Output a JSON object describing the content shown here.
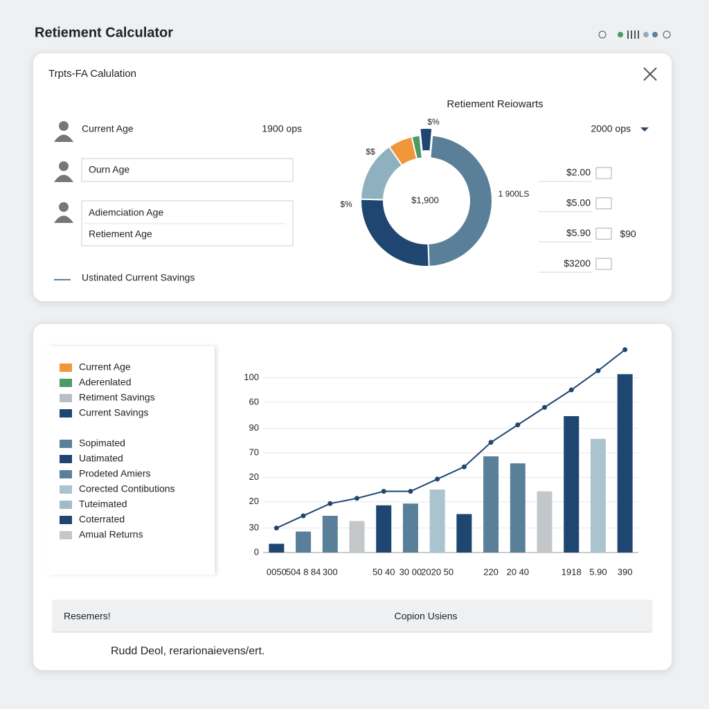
{
  "header": {
    "title": "Retiement Calculator"
  },
  "form": {
    "title": "Trpts-FA Calulation",
    "fields": [
      {
        "label": "Current Age",
        "value": "1900 ops"
      },
      {
        "label": "Ourn Age"
      },
      {
        "label": "Adiemciation Age"
      },
      {
        "label": "Retiement Age"
      },
      {
        "label": "Ustinated Current Savings"
      }
    ]
  },
  "side": {
    "dropdown": "2000 ops",
    "inputs": [
      "$2.00",
      "$5.00",
      "$5.90",
      "$3200"
    ],
    "extra": "$90"
  },
  "chart_data": [
    {
      "type": "donut",
      "title": "Retiement Reiowarts",
      "values": [
        48,
        26,
        15,
        6,
        2,
        3
      ],
      "colors": [
        "#5a7f99",
        "#1f4670",
        "#8fb0bf",
        "#f0973a",
        "#4a9a6a",
        "#1f4670"
      ],
      "explode_index": 5,
      "annotations": [
        "$%",
        "$$",
        "$%",
        "$1,900",
        "1 900LS"
      ]
    },
    {
      "type": "bar-line",
      "categories": [
        "0050",
        "504 8 84",
        "300",
        null,
        "50 40",
        "30 00",
        "2020 50",
        null,
        "220",
        "20 40",
        null,
        "1918",
        "5.90",
        "390"
      ],
      "series": [
        {
          "type": "bar",
          "values": [
            5,
            12,
            21,
            18,
            27,
            28,
            36,
            22,
            55,
            51,
            35,
            78,
            65,
            102
          ],
          "colors": [
            "#1f4670",
            "#5a7f99",
            "#5a7f99",
            "#c3c7ca",
            "#1f4670",
            "#5a7f99",
            "#a9c4cf",
            "#1f4670",
            "#5a7f99",
            "#5a7f99",
            "#c3c7ca",
            "#1f4670",
            "#a9c4cf",
            "#1f4670"
          ]
        },
        {
          "type": "line",
          "color": "#1f4670",
          "values": [
            14,
            21,
            28,
            31,
            35,
            35,
            42,
            49,
            63,
            73,
            83,
            93,
            104,
            116
          ]
        }
      ],
      "ylim": [
        0,
        118
      ],
      "yticks": [
        0,
        {
          "value": 14,
          "label": "30"
        },
        {
          "value": 29,
          "label": "20"
        },
        {
          "value": 43,
          "label": "20"
        },
        {
          "value": 57,
          "label": "70"
        },
        {
          "value": 71,
          "label": "90"
        },
        {
          "value": 86,
          "label": "60"
        },
        100
      ],
      "grid": true,
      "legend": [
        {
          "name": "Current Age",
          "color": "#f0973a"
        },
        {
          "name": "Aderenlated",
          "color": "#4a9a6a"
        },
        {
          "name": "Retiment Savings",
          "color": "#b9bec2"
        },
        {
          "name": "Current Savings",
          "color": "#1f4670"
        },
        {
          "name": "Sopimated",
          "color": "#5a7f99"
        },
        {
          "name": "Uatimated",
          "color": "#1f4670"
        },
        {
          "name": "Prodeted Amiers",
          "color": "#5a7f99"
        },
        {
          "name": "Corected Contibutions",
          "color": "#a9c4cf"
        },
        {
          "name": "Tuteimated",
          "color": "#9fbcc6"
        },
        {
          "name": "Coterrated",
          "color": "#1f4670"
        },
        {
          "name": "Amual Returns",
          "color": "#c3c7ca"
        }
      ]
    }
  ],
  "footer": {
    "columns": [
      "Resemers!",
      "Copion Usiens"
    ],
    "note": "Rudd Deol, rerarionaievens/ert."
  }
}
